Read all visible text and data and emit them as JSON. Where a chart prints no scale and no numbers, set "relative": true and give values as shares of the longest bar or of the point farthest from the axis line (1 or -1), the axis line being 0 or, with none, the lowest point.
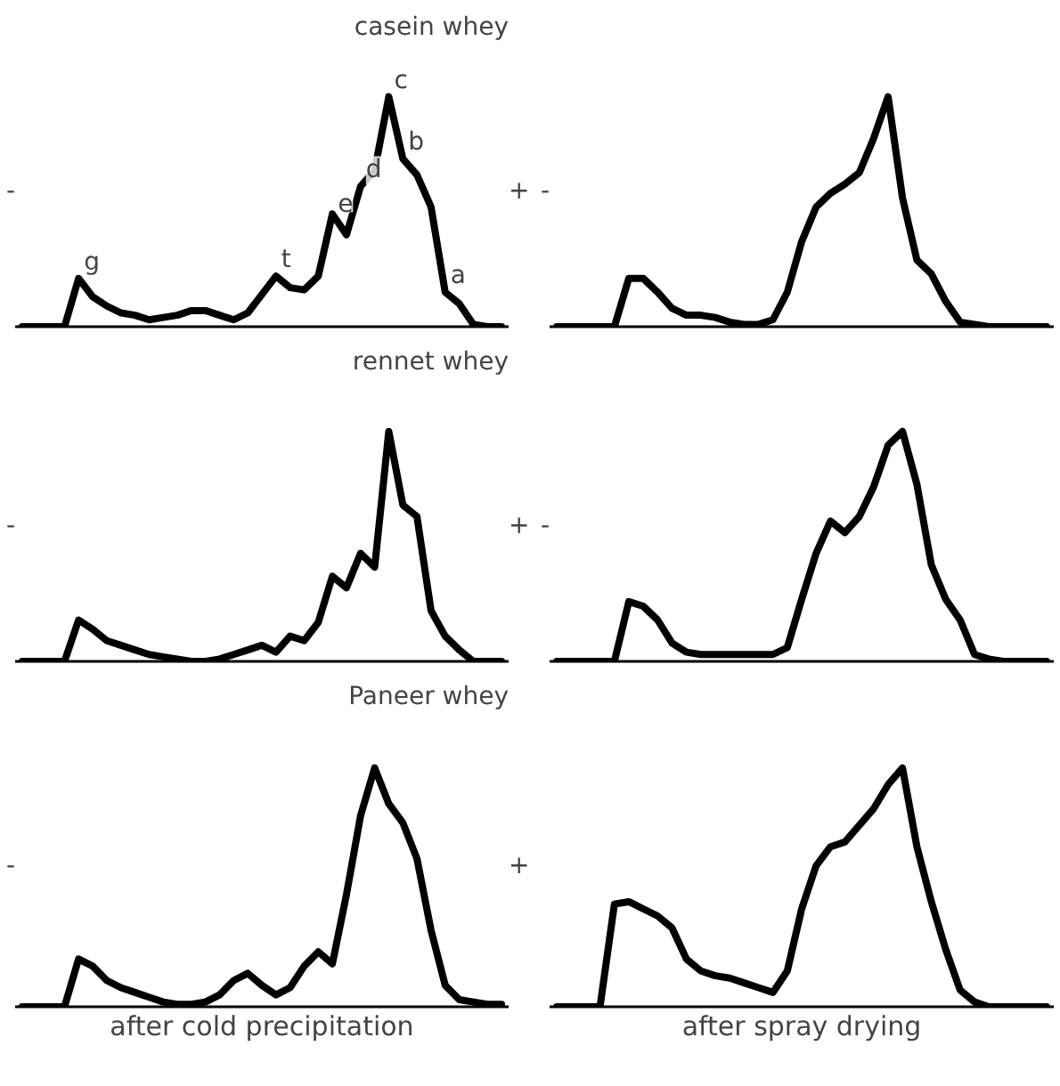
{
  "chart_data": [
    {
      "type": "line",
      "relative": true,
      "title": "casein whey",
      "ylabel": "-",
      "y2label": "+",
      "categories": [
        null,
        null,
        null,
        null,
        null,
        null,
        null,
        null,
        null,
        null,
        null,
        null,
        null,
        null,
        null,
        null,
        null,
        null,
        null,
        null,
        null,
        null,
        null,
        null,
        null,
        null,
        null,
        null,
        null,
        null,
        null,
        null,
        null,
        null,
        null
      ],
      "series": [
        {
          "color": "#000000",
          "values": [
            0,
            0,
            0,
            0,
            0.21,
            0.13,
            0.09,
            0.06,
            0.05,
            0.03,
            0.04,
            0.05,
            0.07,
            0.07,
            0.05,
            0.03,
            0.06,
            0.14,
            0.22,
            0.17,
            0.16,
            0.22,
            0.49,
            0.4,
            0.61,
            0.68,
            1,
            0.73,
            0.66,
            0.52,
            0.15,
            0.1,
            0.01,
            0,
            0
          ]
        }
      ],
      "annotations": [
        {
          "text": "g",
          "y": 0.21
        },
        {
          "text": "t",
          "y": 0.22
        },
        {
          "text": "e",
          "y": 0.49
        },
        {
          "text": "d",
          "y": 0.61
        },
        {
          "text": "c",
          "y": 1
        },
        {
          "text": "b",
          "y": 0.73
        },
        {
          "text": "a",
          "y": 0.15
        }
      ]
    },
    {
      "type": "line",
      "relative": true,
      "ylabel": "-",
      "categories": [
        null,
        null,
        null,
        null,
        null,
        null,
        null,
        null,
        null,
        null,
        null,
        null,
        null,
        null,
        null,
        null,
        null,
        null,
        null,
        null,
        null,
        null,
        null,
        null,
        null,
        null,
        null,
        null,
        null,
        null,
        null,
        null,
        null,
        null,
        null
      ],
      "series": [
        {
          "color": "#000000",
          "values": [
            0,
            0,
            0,
            0,
            0,
            0.21,
            0.21,
            0.15,
            0.08,
            0.05,
            0.05,
            0.04,
            0.02,
            0.01,
            0.01,
            0.03,
            0.15,
            0.37,
            0.52,
            0.58,
            0.62,
            0.67,
            0.82,
            1,
            0.56,
            0.29,
            0.23,
            0.11,
            0.02,
            0.01,
            0,
            0,
            0,
            0,
            0
          ]
        }
      ]
    },
    {
      "type": "line",
      "relative": true,
      "title": "rennet whey",
      "ylabel": "-",
      "y2label": "+",
      "categories": [
        null,
        null,
        null,
        null,
        null,
        null,
        null,
        null,
        null,
        null,
        null,
        null,
        null,
        null,
        null,
        null,
        null,
        null,
        null,
        null,
        null,
        null,
        null,
        null,
        null,
        null,
        null,
        null,
        null,
        null,
        null,
        null,
        null,
        null,
        null
      ],
      "series": [
        {
          "color": "#000000",
          "values": [
            0,
            0,
            0,
            0,
            0.18,
            0.14,
            0.09,
            0.07,
            0.05,
            0.03,
            0.02,
            0.01,
            0,
            0,
            0.01,
            0.03,
            0.05,
            0.07,
            0.04,
            0.11,
            0.09,
            0.17,
            0.37,
            0.32,
            0.47,
            0.41,
            1,
            0.68,
            0.63,
            0.22,
            0.11,
            0.05,
            0,
            0,
            0
          ]
        }
      ]
    },
    {
      "type": "line",
      "relative": true,
      "ylabel": "-",
      "categories": [
        null,
        null,
        null,
        null,
        null,
        null,
        null,
        null,
        null,
        null,
        null,
        null,
        null,
        null,
        null,
        null,
        null,
        null,
        null,
        null,
        null,
        null,
        null,
        null,
        null,
        null,
        null,
        null,
        null,
        null,
        null,
        null,
        null,
        null,
        null
      ],
      "series": [
        {
          "color": "#000000",
          "values": [
            0,
            0,
            0,
            0,
            0,
            0.26,
            0.24,
            0.18,
            0.08,
            0.04,
            0.03,
            0.03,
            0.03,
            0.03,
            0.03,
            0.03,
            0.06,
            0.27,
            0.47,
            0.61,
            0.56,
            0.63,
            0.76,
            0.94,
            1,
            0.77,
            0.42,
            0.27,
            0.18,
            0.03,
            0.01,
            0,
            0,
            0,
            0
          ]
        }
      ]
    },
    {
      "type": "line",
      "relative": true,
      "title": "Paneer whey",
      "xlabel": "after cold precipitation",
      "ylabel": "-",
      "y2label": "+",
      "categories": [
        null,
        null,
        null,
        null,
        null,
        null,
        null,
        null,
        null,
        null,
        null,
        null,
        null,
        null,
        null,
        null,
        null,
        null,
        null,
        null,
        null,
        null,
        null,
        null,
        null,
        null,
        null,
        null,
        null,
        null,
        null,
        null,
        null,
        null,
        null
      ],
      "series": [
        {
          "color": "#000000",
          "values": [
            0,
            0,
            0,
            0,
            0.2,
            0.17,
            0.11,
            0.08,
            0.06,
            0.04,
            0.02,
            0.01,
            0.01,
            0.02,
            0.05,
            0.11,
            0.14,
            0.09,
            0.05,
            0.08,
            0.17,
            0.23,
            0.18,
            0.47,
            0.8,
            1,
            0.85,
            0.77,
            0.62,
            0.32,
            0.09,
            0.03,
            0.02,
            0.01,
            0.01
          ]
        }
      ]
    },
    {
      "type": "line",
      "relative": true,
      "xlabel": "after spray drying",
      "categories": [
        null,
        null,
        null,
        null,
        null,
        null,
        null,
        null,
        null,
        null,
        null,
        null,
        null,
        null,
        null,
        null,
        null,
        null,
        null,
        null,
        null,
        null,
        null,
        null,
        null,
        null,
        null,
        null,
        null,
        null,
        null,
        null,
        null,
        null,
        null
      ],
      "series": [
        {
          "color": "#000000",
          "values": [
            0,
            0,
            0,
            0,
            0.43,
            0.44,
            0.41,
            0.38,
            0.33,
            0.2,
            0.15,
            0.13,
            0.12,
            0.1,
            0.08,
            0.06,
            0.15,
            0.41,
            0.59,
            0.67,
            0.69,
            0.76,
            0.83,
            0.93,
            1,
            0.67,
            0.44,
            0.24,
            0.07,
            0.02,
            0,
            0,
            0,
            0,
            0
          ]
        }
      ]
    }
  ]
}
